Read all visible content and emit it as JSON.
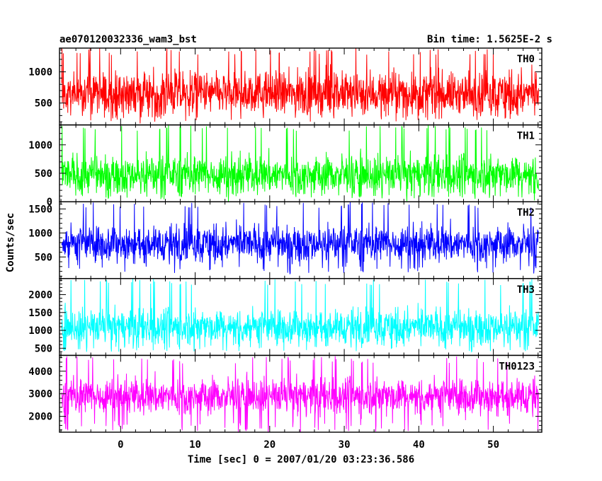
{
  "header": {
    "title": "ae070120032336_wam3_bst",
    "bin_time": "Bin time: 1.5625E-2 s"
  },
  "chart_data": {
    "type": "line",
    "xlabel": "Time [sec] 0 = 2007/01/20 03:23:36.586",
    "ylabel": "Counts/sec",
    "xlim": [
      -8.2,
      56.5
    ],
    "x_start": -7.9,
    "x_end": 56.1,
    "x_ticks": [
      0,
      10,
      20,
      30,
      40,
      50
    ],
    "grid": false,
    "panels": [
      {
        "name": "TH0",
        "color": "#ff0000",
        "ylim": [
          150,
          1380
        ],
        "yticks": [
          500,
          1000
        ],
        "center": 650,
        "spread": 280,
        "min_val": 200,
        "max_val": 1380
      },
      {
        "name": "TH1",
        "color": "#00ff00",
        "ylim": [
          0,
          1350
        ],
        "yticks": [
          0,
          500,
          1000
        ],
        "center": 480,
        "spread": 270,
        "min_val": 60,
        "max_val": 1350
      },
      {
        "name": "TH2",
        "color": "#0000ff",
        "ylim": [
          50,
          1650
        ],
        "yticks": [
          500,
          1000,
          1500
        ],
        "center": 780,
        "spread": 300,
        "min_val": 150,
        "max_val": 1650
      },
      {
        "name": "TH3",
        "color": "#00ffff",
        "ylim": [
          300,
          2450
        ],
        "yticks": [
          500,
          1000,
          1500,
          2000
        ],
        "center": 1100,
        "spread": 400,
        "min_val": 400,
        "max_val": 2450
      },
      {
        "name": "TH0123",
        "color": "#ff00ff",
        "ylim": [
          1300,
          4700
        ],
        "yticks": [
          2000,
          3000,
          4000
        ],
        "center": 2900,
        "spread": 640,
        "min_val": 1300,
        "max_val": 4700
      }
    ]
  }
}
